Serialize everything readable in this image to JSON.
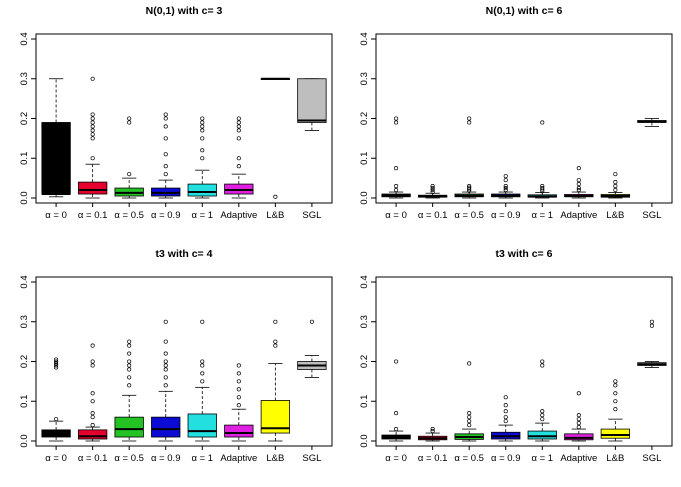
{
  "chart_data": [
    {
      "type": "boxplot",
      "title": "N(0,1) with c= 3",
      "categories": [
        "α = 0",
        "α = 0.1",
        "α = 0.5",
        "α = 0.9",
        "α = 1",
        "Adaptive",
        "L&B",
        "SGL"
      ],
      "ylim": [
        0,
        0.4
      ],
      "yticks": [
        "0.0",
        "0.1",
        "0.2",
        "0.3",
        "0.4"
      ],
      "yticks_values": [
        0,
        0.1,
        0.2,
        0.3,
        0.4
      ],
      "colors": [
        "#000000",
        "#e6002e",
        "#22c322",
        "#0b0bd3",
        "#22e0e0",
        "#e020e0",
        "#ffff00",
        "#bebebe"
      ],
      "boxes": [
        {
          "min": 0.003,
          "q1": 0.01,
          "med": 0.01,
          "q3": 0.19,
          "max": 0.3,
          "outliers": []
        },
        {
          "min": 0.0,
          "q1": 0.01,
          "med": 0.02,
          "q3": 0.04,
          "max": 0.085,
          "outliers": [
            0.1,
            0.15,
            0.16,
            0.17,
            0.18,
            0.19,
            0.2,
            0.21,
            0.3
          ]
        },
        {
          "min": 0.0,
          "q1": 0.005,
          "med": 0.013,
          "q3": 0.025,
          "max": 0.05,
          "outliers": [
            0.06,
            0.19,
            0.2
          ]
        },
        {
          "min": 0.0,
          "q1": 0.005,
          "med": 0.013,
          "q3": 0.025,
          "max": 0.045,
          "outliers": [
            0.06,
            0.08,
            0.11,
            0.15,
            0.18,
            0.2,
            0.21
          ]
        },
        {
          "min": 0.0,
          "q1": 0.005,
          "med": 0.015,
          "q3": 0.035,
          "max": 0.07,
          "outliers": [
            0.1,
            0.12,
            0.15,
            0.17,
            0.18,
            0.19,
            0.2
          ]
        },
        {
          "min": 0.0,
          "q1": 0.01,
          "med": 0.02,
          "q3": 0.035,
          "max": 0.06,
          "outliers": [
            0.08,
            0.1,
            0.15,
            0.17,
            0.18,
            0.19,
            0.2
          ]
        },
        {
          "min": 0.3,
          "q1": 0.3,
          "med": 0.3,
          "q3": 0.3,
          "max": 0.3,
          "outliers": [
            0.003
          ]
        },
        {
          "min": 0.17,
          "q1": 0.19,
          "med": 0.195,
          "q3": 0.3,
          "max": 0.3,
          "outliers": []
        }
      ]
    },
    {
      "type": "boxplot",
      "title": "N(0,1) with c= 6",
      "categories": [
        "α = 0",
        "α = 0.1",
        "α = 0.5",
        "α = 0.9",
        "α = 1",
        "Adaptive",
        "L&B",
        "SGL"
      ],
      "ylim": [
        0,
        0.4
      ],
      "yticks": [
        "0.0",
        "0.1",
        "0.2",
        "0.3",
        "0.4"
      ],
      "yticks_values": [
        0,
        0.1,
        0.2,
        0.3,
        0.4
      ],
      "colors": [
        "#000000",
        "#e6002e",
        "#22c322",
        "#0b0bd3",
        "#22e0e0",
        "#e020e0",
        "#ffff00",
        "#bebebe"
      ],
      "boxes": [
        {
          "min": 0.0,
          "q1": 0.003,
          "med": 0.006,
          "q3": 0.01,
          "max": 0.015,
          "outliers": [
            0.02,
            0.03,
            0.075,
            0.19,
            0.2
          ]
        },
        {
          "min": 0.0,
          "q1": 0.002,
          "med": 0.004,
          "q3": 0.007,
          "max": 0.012,
          "outliers": [
            0.015,
            0.02,
            0.025,
            0.03
          ]
        },
        {
          "min": 0.0,
          "q1": 0.003,
          "med": 0.006,
          "q3": 0.01,
          "max": 0.015,
          "outliers": [
            0.018,
            0.022,
            0.026,
            0.03,
            0.19,
            0.2
          ]
        },
        {
          "min": 0.0,
          "q1": 0.003,
          "med": 0.006,
          "q3": 0.01,
          "max": 0.015,
          "outliers": [
            0.02,
            0.025,
            0.03,
            0.045,
            0.055
          ]
        },
        {
          "min": 0.0,
          "q1": 0.002,
          "med": 0.004,
          "q3": 0.008,
          "max": 0.014,
          "outliers": [
            0.017,
            0.021,
            0.025,
            0.03,
            0.19
          ]
        },
        {
          "min": 0.0,
          "q1": 0.003,
          "med": 0.005,
          "q3": 0.009,
          "max": 0.015,
          "outliers": [
            0.02,
            0.025,
            0.035,
            0.045,
            0.075
          ]
        },
        {
          "min": 0.0,
          "q1": 0.002,
          "med": 0.005,
          "q3": 0.009,
          "max": 0.014,
          "outliers": [
            0.02,
            0.03,
            0.04,
            0.06
          ]
        },
        {
          "min": 0.18,
          "q1": 0.19,
          "med": 0.192,
          "q3": 0.195,
          "max": 0.2,
          "outliers": []
        }
      ]
    },
    {
      "type": "boxplot",
      "title": "t3 with c= 4",
      "categories": [
        "α = 0",
        "α = 0.1",
        "α = 0.5",
        "α = 0.9",
        "α = 1",
        "Adaptive",
        "L&B",
        "SGL"
      ],
      "ylim": [
        0,
        0.4
      ],
      "yticks": [
        "0.0",
        "0.1",
        "0.2",
        "0.3",
        "0.4"
      ],
      "yticks_values": [
        0,
        0.1,
        0.2,
        0.3,
        0.4
      ],
      "colors": [
        "#000000",
        "#e6002e",
        "#22c322",
        "#0b0bd3",
        "#22e0e0",
        "#e020e0",
        "#ffff00",
        "#bebebe"
      ],
      "boxes": [
        {
          "min": 0.0,
          "q1": 0.01,
          "med": 0.015,
          "q3": 0.028,
          "max": 0.05,
          "outliers": [
            0.055,
            0.185,
            0.19,
            0.195,
            0.2,
            0.205
          ]
        },
        {
          "min": 0.0,
          "q1": 0.005,
          "med": 0.012,
          "q3": 0.028,
          "max": 0.035,
          "outliers": [
            0.04,
            0.06,
            0.07,
            0.1,
            0.12,
            0.19,
            0.2,
            0.24
          ]
        },
        {
          "min": 0.0,
          "q1": 0.01,
          "med": 0.03,
          "q3": 0.06,
          "max": 0.115,
          "outliers": [
            0.14,
            0.16,
            0.18,
            0.19,
            0.2,
            0.22,
            0.24,
            0.25
          ]
        },
        {
          "min": 0.0,
          "q1": 0.01,
          "med": 0.03,
          "q3": 0.06,
          "max": 0.125,
          "outliers": [
            0.14,
            0.16,
            0.18,
            0.19,
            0.2,
            0.22,
            0.25,
            0.3
          ]
        },
        {
          "min": 0.0,
          "q1": 0.01,
          "med": 0.025,
          "q3": 0.068,
          "max": 0.135,
          "outliers": [
            0.15,
            0.17,
            0.19,
            0.2,
            0.3
          ]
        },
        {
          "min": 0.0,
          "q1": 0.01,
          "med": 0.02,
          "q3": 0.04,
          "max": 0.08,
          "outliers": [
            0.09,
            0.11,
            0.13,
            0.15,
            0.17,
            0.19
          ]
        },
        {
          "min": 0.0,
          "q1": 0.02,
          "med": 0.032,
          "q3": 0.102,
          "max": 0.195,
          "outliers": [
            0.24,
            0.25,
            0.3
          ]
        },
        {
          "min": 0.16,
          "q1": 0.18,
          "med": 0.19,
          "q3": 0.2,
          "max": 0.215,
          "outliers": [
            0.3
          ]
        }
      ]
    },
    {
      "type": "boxplot",
      "title": "t3 with c= 6",
      "categories": [
        "α = 0",
        "α = 0.1",
        "α = 0.5",
        "α = 0.9",
        "α = 1",
        "Adaptive",
        "L&B",
        "SGL"
      ],
      "ylim": [
        0,
        0.4
      ],
      "yticks": [
        "0.0",
        "0.1",
        "0.2",
        "0.3",
        "0.4"
      ],
      "yticks_values": [
        0,
        0.1,
        0.2,
        0.3,
        0.4
      ],
      "colors": [
        "#000000",
        "#e6002e",
        "#22c322",
        "#0b0bd3",
        "#22e0e0",
        "#e020e0",
        "#ffff00",
        "#bebebe"
      ],
      "boxes": [
        {
          "min": 0.0,
          "q1": 0.005,
          "med": 0.01,
          "q3": 0.015,
          "max": 0.025,
          "outliers": [
            0.03,
            0.07,
            0.2
          ]
        },
        {
          "min": 0.0,
          "q1": 0.003,
          "med": 0.007,
          "q3": 0.012,
          "max": 0.02,
          "outliers": [
            0.025,
            0.03
          ]
        },
        {
          "min": 0.0,
          "q1": 0.004,
          "med": 0.01,
          "q3": 0.018,
          "max": 0.03,
          "outliers": [
            0.04,
            0.05,
            0.06,
            0.07,
            0.195
          ]
        },
        {
          "min": 0.0,
          "q1": 0.005,
          "med": 0.012,
          "q3": 0.022,
          "max": 0.04,
          "outliers": [
            0.05,
            0.06,
            0.075,
            0.09,
            0.11
          ]
        },
        {
          "min": 0.0,
          "q1": 0.005,
          "med": 0.012,
          "q3": 0.025,
          "max": 0.045,
          "outliers": [
            0.055,
            0.065,
            0.075,
            0.19,
            0.2
          ]
        },
        {
          "min": 0.0,
          "q1": 0.003,
          "med": 0.008,
          "q3": 0.018,
          "max": 0.03,
          "outliers": [
            0.035,
            0.045,
            0.055,
            0.065,
            0.12
          ]
        },
        {
          "min": 0.0,
          "q1": 0.007,
          "med": 0.015,
          "q3": 0.03,
          "max": 0.055,
          "outliers": [
            0.08,
            0.1,
            0.12,
            0.14,
            0.15
          ]
        },
        {
          "min": 0.185,
          "q1": 0.19,
          "med": 0.193,
          "q3": 0.197,
          "max": 0.2,
          "outliers": [
            0.29,
            0.3
          ]
        }
      ]
    }
  ]
}
